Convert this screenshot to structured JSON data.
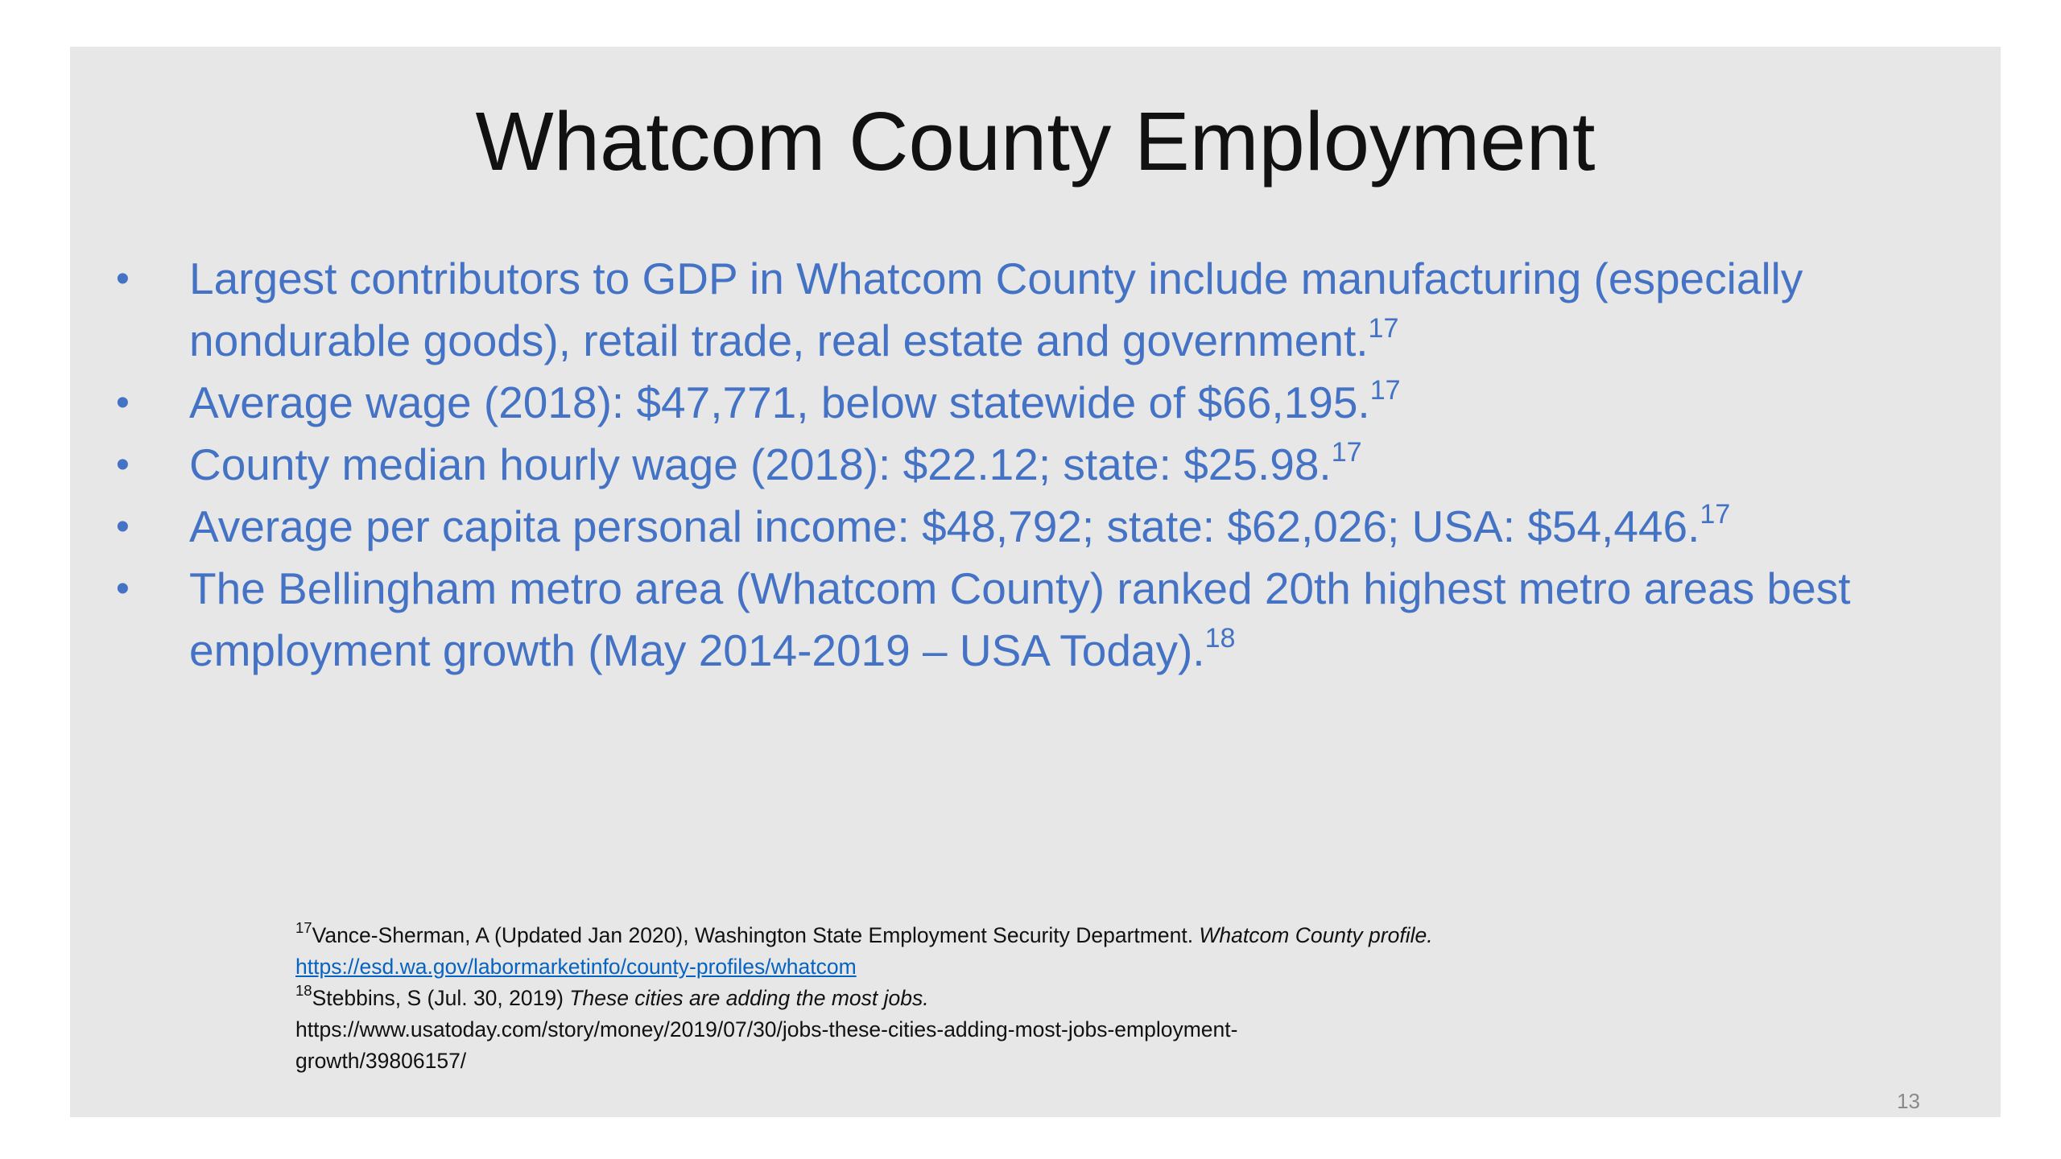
{
  "slide": {
    "title": "Whatcom County Employment",
    "bullets": [
      {
        "text": "Largest contributors to GDP in Whatcom County include manufacturing (especially nondurable goods), retail trade, real estate and government.",
        "ref": "17"
      },
      {
        "text": "Average wage (2018): $47,771, below statewide of $66,195.",
        "ref": "17"
      },
      {
        "text": "County median hourly wage (2018): $22.12; state: $25.98.",
        "ref": "17"
      },
      {
        "text": "Average per capita personal income: $48,792; state: $62,026; USA: $54,446.",
        "ref": "17"
      },
      {
        "text": "The Bellingham metro area (Whatcom County) ranked 20th highest metro areas best employment growth (May 2014-2019 – USA Today).",
        "ref": "18"
      }
    ],
    "bullet_symbol": "•",
    "footnotes": {
      "fn17": {
        "ref": "17",
        "text": "Vance-Sherman, A (Updated Jan 2020), Washington State Employment Security Department. ",
        "italic": "Whatcom County profile.",
        "link": "https://esd.wa.gov/labormarketinfo/county-profiles/whatcom"
      },
      "fn18": {
        "ref": "18",
        "text": "Stebbins, S (Jul. 30, 2019) ",
        "italic": "These cities are adding the most jobs.",
        "url_line1": "https://www.usatoday.com/story/money/2019/07/30/jobs-these-cities-adding-most-jobs-employment-",
        "url_line2": "growth/39806157/"
      }
    },
    "page_number": "13"
  },
  "colors": {
    "background": "#e7e7e7",
    "bullet_text": "#4472c4",
    "title_text": "#111111",
    "link": "#0563c1"
  }
}
